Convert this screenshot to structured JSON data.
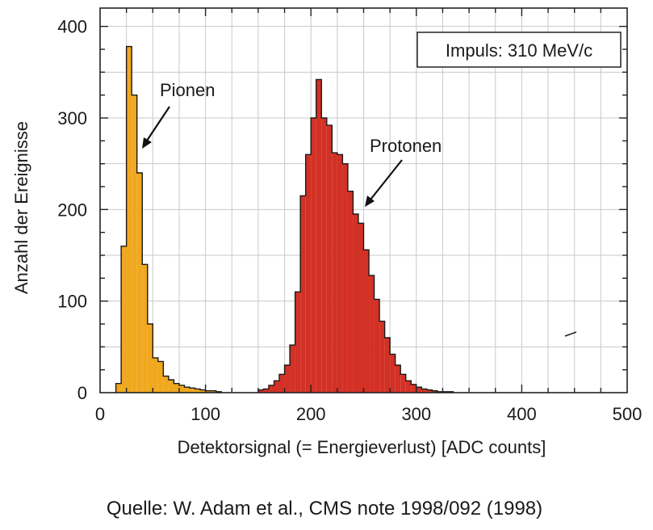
{
  "chart_data": {
    "type": "bar",
    "xlabel": "Detektorsignal (= Energieverlust) [ADC counts]",
    "ylabel": "Anzahl der Ereignisse",
    "xlim": [
      0,
      500
    ],
    "ylim": [
      0,
      420
    ],
    "xticks": [
      "0",
      "100",
      "200",
      "300",
      "400",
      "500"
    ],
    "yticks": [
      "0",
      "100",
      "200",
      "300",
      "400"
    ],
    "xtick_values": [
      0,
      100,
      200,
      300,
      400,
      500
    ],
    "ytick_values": [
      0,
      100,
      200,
      300,
      400
    ],
    "grid": true,
    "bin_width": 5,
    "series": [
      {
        "name": "Pionen",
        "color": "#f0a81e",
        "x": [
          15,
          20,
          25,
          30,
          35,
          40,
          45,
          50,
          55,
          60,
          65,
          70,
          75,
          80,
          85,
          90,
          95,
          100,
          105,
          110
        ],
        "values": [
          10,
          160,
          378,
          325,
          240,
          140,
          75,
          38,
          34,
          18,
          14,
          10,
          8,
          6,
          5,
          4,
          3,
          2,
          2,
          1
        ]
      },
      {
        "name": "Protonen",
        "color": "#d33125",
        "x": [
          150,
          155,
          160,
          165,
          170,
          175,
          180,
          185,
          190,
          195,
          200,
          205,
          210,
          215,
          220,
          225,
          230,
          235,
          240,
          245,
          250,
          255,
          260,
          265,
          270,
          275,
          280,
          285,
          290,
          295,
          300,
          305,
          310,
          315,
          320,
          325,
          330
        ],
        "values": [
          3,
          4,
          8,
          13,
          20,
          30,
          52,
          110,
          215,
          260,
          300,
          342,
          300,
          292,
          262,
          260,
          250,
          220,
          195,
          185,
          156,
          128,
          102,
          78,
          60,
          42,
          30,
          20,
          13,
          9,
          6,
          4,
          3,
          2,
          1,
          1,
          1
        ]
      }
    ],
    "annotations": [
      {
        "text": "Pionen",
        "series": "Pionen"
      },
      {
        "text": "Protonen",
        "series": "Protonen"
      }
    ],
    "info_box": "Impuls: 310 MeV/c"
  },
  "caption": "Quelle:  W. Adam et al., CMS note 1998/092 (1998)"
}
